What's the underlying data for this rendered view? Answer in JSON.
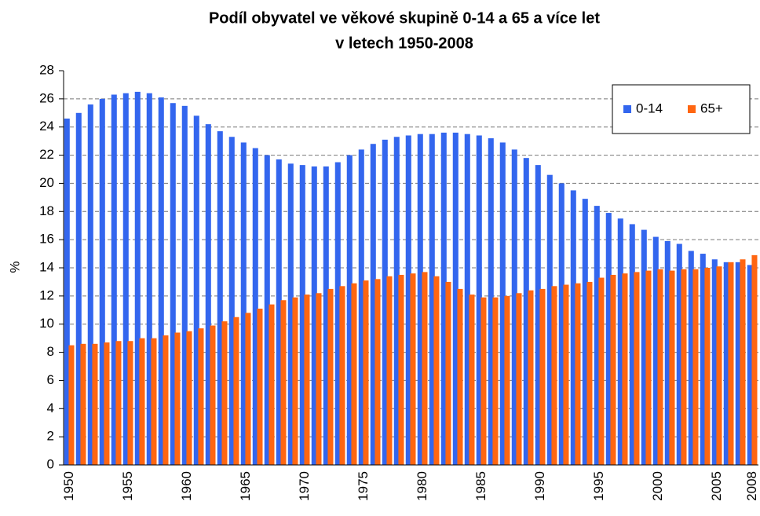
{
  "chart_data": {
    "type": "bar",
    "title": [
      "Podíl obyvatel ve věkové skupině 0-14 a 65 a více let",
      "v letech 1950-2008"
    ],
    "ylabel": "%",
    "categories": [
      "1950",
      null,
      null,
      null,
      null,
      "1955",
      null,
      null,
      null,
      null,
      "1960",
      null,
      null,
      null,
      null,
      "1965",
      null,
      null,
      null,
      null,
      "1970",
      null,
      null,
      null,
      null,
      "1975",
      null,
      null,
      null,
      null,
      "1980",
      null,
      null,
      null,
      null,
      "1985",
      null,
      null,
      null,
      null,
      "1990",
      null,
      null,
      null,
      null,
      "1995",
      null,
      null,
      null,
      null,
      "2000",
      null,
      null,
      null,
      null,
      "2005",
      null,
      null,
      "2008"
    ],
    "series": [
      {
        "name": "0-14",
        "color": "#3366ee",
        "values": [
          24.6,
          25.0,
          25.6,
          26.0,
          26.3,
          26.4,
          26.5,
          26.4,
          26.1,
          25.7,
          25.5,
          24.8,
          24.2,
          23.7,
          23.3,
          22.9,
          22.5,
          22.0,
          21.7,
          21.4,
          21.3,
          21.2,
          21.2,
          21.5,
          22.0,
          22.4,
          22.8,
          23.1,
          23.3,
          23.4,
          23.5,
          23.5,
          23.6,
          23.6,
          23.5,
          23.4,
          23.2,
          22.9,
          22.4,
          21.8,
          21.3,
          20.6,
          20.0,
          19.5,
          18.9,
          18.4,
          17.9,
          17.5,
          17.1,
          16.7,
          16.2,
          15.9,
          15.7,
          15.2,
          15.0,
          14.6,
          14.4,
          14.4,
          14.2
        ]
      },
      {
        "name": "65+",
        "color": "#ff6611",
        "values": [
          8.5,
          8.6,
          8.6,
          8.7,
          8.8,
          8.8,
          9.0,
          9.0,
          9.2,
          9.4,
          9.5,
          9.7,
          9.9,
          10.2,
          10.5,
          10.8,
          11.1,
          11.4,
          11.7,
          11.9,
          12.1,
          12.2,
          12.5,
          12.7,
          12.9,
          13.1,
          13.2,
          13.4,
          13.5,
          13.6,
          13.7,
          13.4,
          13.0,
          12.5,
          12.1,
          11.9,
          11.9,
          12.0,
          12.2,
          12.4,
          12.5,
          12.7,
          12.8,
          12.9,
          13.0,
          13.3,
          13.5,
          13.6,
          13.7,
          13.8,
          13.9,
          13.8,
          13.9,
          13.9,
          14.0,
          14.1,
          14.4,
          14.6,
          14.9
        ]
      }
    ],
    "ylim": [
      0,
      28
    ],
    "yticks": [
      0,
      2,
      4,
      6,
      8,
      10,
      12,
      14,
      16,
      18,
      20,
      22,
      24,
      26,
      28
    ],
    "grid": true,
    "legend": "upper right"
  }
}
